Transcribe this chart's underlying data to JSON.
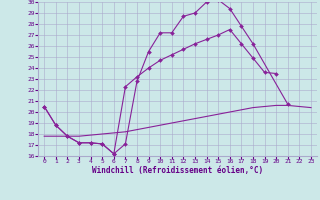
{
  "xlabel": "Windchill (Refroidissement éolien,°C)",
  "bg_color": "#cce8e8",
  "grid_color": "#aaaacc",
  "line_color": "#882299",
  "xlim": [
    -0.5,
    23.5
  ],
  "ylim": [
    16,
    30
  ],
  "xtick_labels": [
    "0",
    "1",
    "2",
    "3",
    "4",
    "5",
    "6",
    "7",
    "8",
    "9",
    "10",
    "11",
    "12",
    "13",
    "14",
    "15",
    "16",
    "17",
    "18",
    "19",
    "20",
    "21",
    "22",
    "23"
  ],
  "ytick_labels": [
    "16",
    "17",
    "18",
    "19",
    "20",
    "21",
    "22",
    "23",
    "24",
    "25",
    "26",
    "27",
    "28",
    "29",
    "30"
  ],
  "line1_x": [
    0,
    1,
    2,
    3,
    4,
    5,
    6,
    7,
    8,
    9,
    10,
    11,
    12,
    13,
    14,
    15,
    16,
    17,
    18,
    21
  ],
  "line1_y": [
    20.5,
    18.8,
    17.8,
    17.2,
    17.2,
    17.1,
    16.2,
    17.1,
    22.8,
    25.5,
    27.2,
    27.2,
    28.7,
    29.0,
    30.0,
    30.2,
    29.4,
    27.8,
    26.2,
    20.7
  ],
  "line2_x": [
    0,
    1,
    2,
    3,
    4,
    5,
    6,
    7,
    8,
    9,
    10,
    11,
    12,
    13,
    14,
    15,
    16,
    17,
    18,
    19,
    20,
    21,
    22,
    23
  ],
  "line2_y": [
    20.5,
    18.8,
    17.8,
    17.2,
    17.2,
    17.1,
    16.2,
    22.3,
    23.2,
    24.0,
    24.7,
    25.2,
    25.7,
    26.2,
    26.6,
    27.0,
    27.5,
    26.2,
    24.9,
    23.6,
    23.5,
    null,
    null,
    null
  ],
  "line3_x": [
    0,
    1,
    2,
    3,
    4,
    5,
    6,
    7,
    8,
    9,
    10,
    11,
    12,
    13,
    14,
    15,
    16,
    17,
    18,
    19,
    20,
    21,
    22,
    23
  ],
  "line3_y": [
    17.8,
    17.8,
    17.8,
    17.8,
    17.9,
    18.0,
    18.1,
    18.2,
    18.4,
    18.6,
    18.8,
    19.0,
    19.2,
    19.4,
    19.6,
    19.8,
    20.0,
    20.2,
    20.4,
    20.5,
    20.6,
    20.6,
    20.5,
    20.4
  ]
}
